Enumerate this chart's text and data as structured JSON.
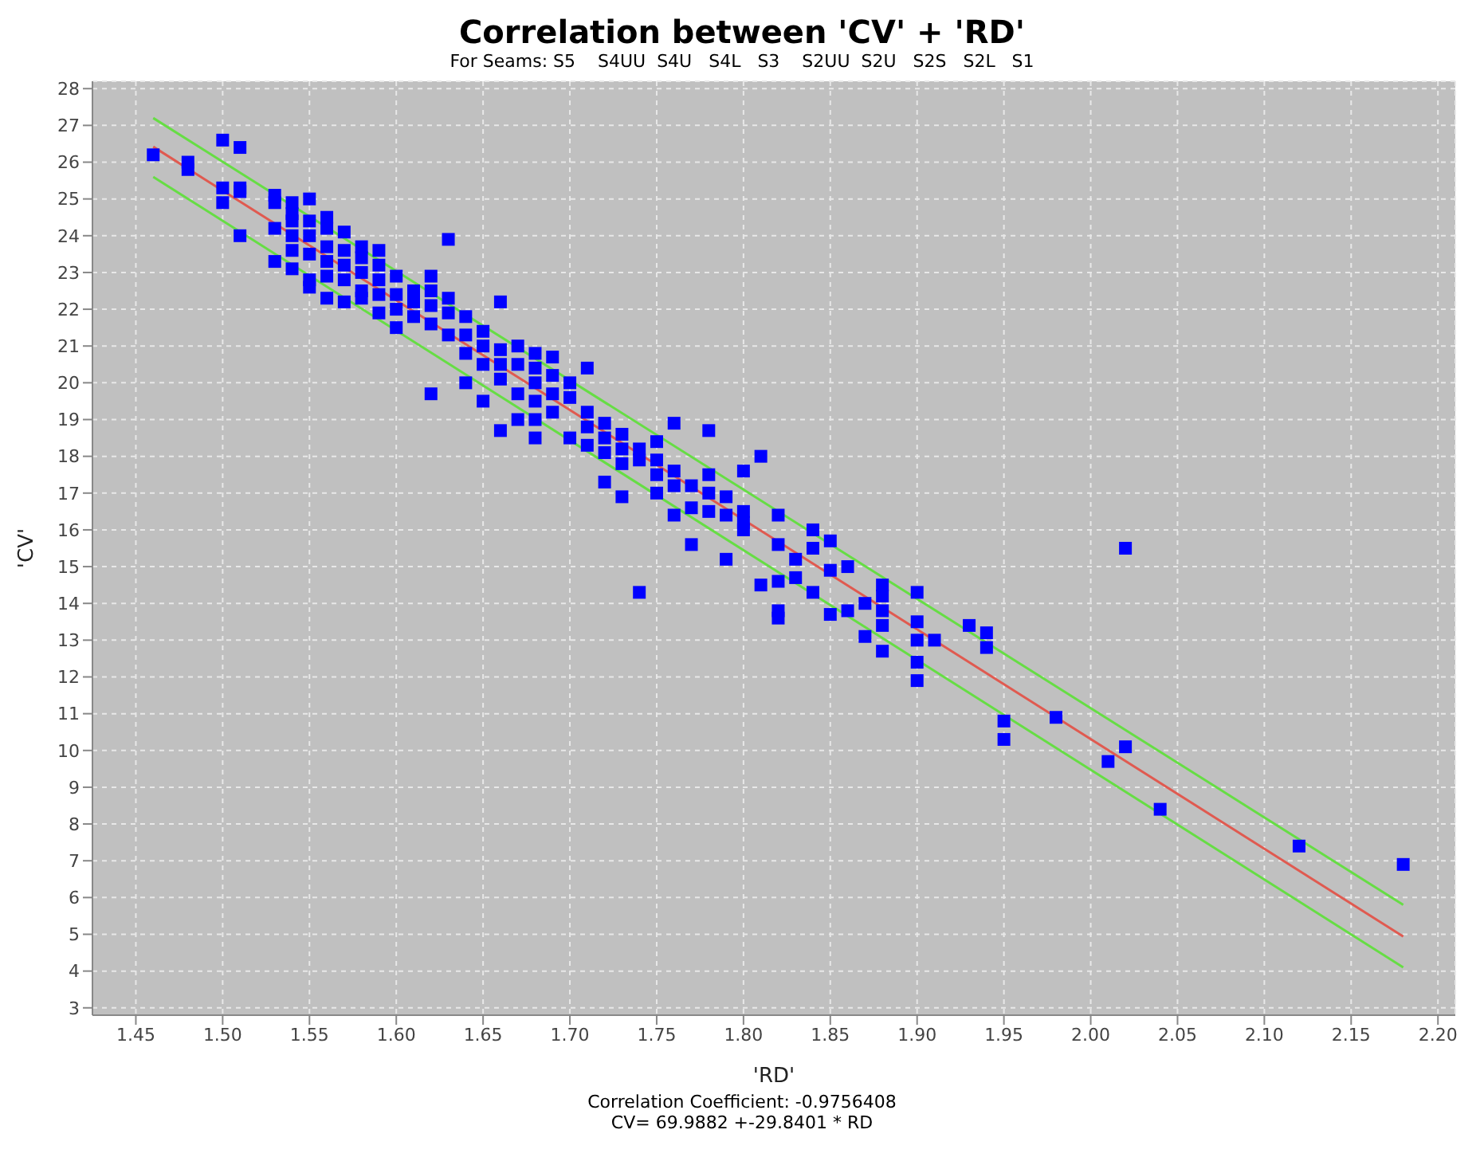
{
  "chart_data": {
    "type": "scatter",
    "title": "Correlation between 'CV' + 'RD'",
    "subtitle": "For Seams: S5    S4UU  S4U   S4L   S3    S2UU  S2U   S2S   S2L   S1",
    "xlabel": "'RD'",
    "ylabel": "'CV'",
    "annotations": [
      "Correlation Coefficient: -0.9756408",
      "CV= 69.9882 +-29.8401 * RD"
    ],
    "xlim": [
      1.425,
      2.21
    ],
    "ylim": [
      2.8,
      28.2
    ],
    "xticks": [
      {
        "value": 1.45,
        "label": "1.45"
      },
      {
        "value": 1.5,
        "label": "1.50"
      },
      {
        "value": 1.55,
        "label": "1.55"
      },
      {
        "value": 1.6,
        "label": "1.60"
      },
      {
        "value": 1.65,
        "label": "1.65"
      },
      {
        "value": 1.7,
        "label": "1.70"
      },
      {
        "value": 1.75,
        "label": "1.75"
      },
      {
        "value": 1.8,
        "label": "1.80"
      },
      {
        "value": 1.85,
        "label": "1.85"
      },
      {
        "value": 1.9,
        "label": "1.90"
      },
      {
        "value": 1.95,
        "label": "1.95"
      },
      {
        "value": 2.0,
        "label": "2.00"
      },
      {
        "value": 2.05,
        "label": "2.05"
      },
      {
        "value": 2.1,
        "label": "2.10"
      },
      {
        "value": 2.15,
        "label": "2.15"
      },
      {
        "value": 2.2,
        "label": "2.20"
      }
    ],
    "yticks": [
      3,
      4,
      5,
      6,
      7,
      8,
      9,
      10,
      11,
      12,
      13,
      14,
      15,
      16,
      17,
      18,
      19,
      20,
      21,
      22,
      23,
      24,
      25,
      26,
      27,
      28
    ],
    "grid": true,
    "legend": false,
    "marker": "square",
    "series": [
      {
        "color": "#0000ff",
        "x": [
          1.46,
          1.48,
          1.48,
          1.5,
          1.5,
          1.5,
          1.51,
          1.51,
          1.51,
          1.51,
          1.53,
          1.53,
          1.53,
          1.53,
          1.54,
          1.54,
          1.54,
          1.54,
          1.54,
          1.54,
          1.55,
          1.55,
          1.55,
          1.55,
          1.55,
          1.55,
          1.56,
          1.56,
          1.56,
          1.56,
          1.56,
          1.56,
          1.57,
          1.57,
          1.57,
          1.57,
          1.57,
          1.58,
          1.58,
          1.58,
          1.58,
          1.58,
          1.59,
          1.59,
          1.59,
          1.59,
          1.59,
          1.6,
          1.6,
          1.6,
          1.6,
          1.61,
          1.61,
          1.61,
          1.62,
          1.62,
          1.62,
          1.62,
          1.62,
          1.63,
          1.63,
          1.63,
          1.63,
          1.64,
          1.64,
          1.64,
          1.64,
          1.65,
          1.65,
          1.65,
          1.65,
          1.66,
          1.66,
          1.66,
          1.66,
          1.66,
          1.67,
          1.67,
          1.67,
          1.67,
          1.68,
          1.68,
          1.68,
          1.68,
          1.68,
          1.68,
          1.69,
          1.69,
          1.69,
          1.69,
          1.7,
          1.7,
          1.7,
          1.71,
          1.71,
          1.71,
          1.71,
          1.72,
          1.72,
          1.72,
          1.72,
          1.73,
          1.73,
          1.73,
          1.73,
          1.74,
          1.74,
          1.74,
          1.75,
          1.75,
          1.75,
          1.75,
          1.76,
          1.76,
          1.76,
          1.76,
          1.77,
          1.77,
          1.77,
          1.78,
          1.78,
          1.78,
          1.78,
          1.79,
          1.79,
          1.79,
          1.8,
          1.8,
          1.8,
          1.8,
          1.81,
          1.81,
          1.82,
          1.82,
          1.82,
          1.82,
          1.82,
          1.83,
          1.83,
          1.84,
          1.84,
          1.84,
          1.85,
          1.85,
          1.85,
          1.86,
          1.86,
          1.87,
          1.87,
          1.88,
          1.88,
          1.88,
          1.88,
          1.88,
          1.9,
          1.9,
          1.9,
          1.9,
          1.9,
          1.91,
          1.93,
          1.94,
          1.94,
          1.95,
          1.95,
          1.98,
          2.01,
          2.02,
          2.02,
          2.04,
          2.12,
          2.18
        ],
        "values": [
          26.2,
          26.0,
          25.8,
          26.6,
          25.3,
          24.9,
          26.4,
          25.3,
          25.2,
          24.0,
          25.1,
          24.9,
          24.2,
          23.3,
          24.9,
          24.6,
          24.4,
          24.0,
          23.6,
          23.1,
          25.0,
          24.4,
          24.0,
          23.5,
          22.8,
          22.6,
          24.5,
          24.2,
          23.7,
          23.3,
          22.9,
          22.3,
          24.1,
          23.6,
          23.2,
          22.8,
          22.2,
          23.7,
          23.4,
          23.0,
          22.5,
          22.3,
          23.6,
          23.2,
          22.8,
          22.4,
          21.9,
          22.9,
          22.4,
          22.0,
          21.5,
          22.5,
          22.2,
          21.8,
          22.9,
          22.5,
          22.1,
          21.6,
          19.7,
          23.9,
          22.3,
          21.9,
          21.3,
          21.8,
          21.3,
          20.8,
          20.0,
          21.4,
          21.0,
          20.5,
          19.5,
          22.2,
          20.9,
          20.5,
          20.1,
          18.7,
          21.0,
          20.5,
          19.7,
          19.0,
          20.8,
          20.4,
          20.0,
          19.5,
          19.0,
          18.5,
          20.7,
          20.2,
          19.7,
          19.2,
          20.0,
          19.6,
          18.5,
          20.4,
          19.2,
          18.8,
          18.3,
          18.9,
          18.5,
          18.1,
          17.3,
          18.6,
          18.2,
          17.8,
          16.9,
          18.2,
          17.9,
          14.3,
          18.4,
          17.9,
          17.5,
          17.0,
          18.9,
          17.6,
          17.2,
          16.4,
          17.2,
          16.6,
          15.6,
          18.7,
          17.5,
          17.0,
          16.5,
          16.9,
          16.4,
          15.2,
          17.6,
          16.5,
          16.2,
          16.0,
          18.0,
          14.5,
          16.4,
          15.6,
          14.6,
          13.8,
          13.6,
          15.2,
          14.7,
          16.0,
          15.5,
          14.3,
          15.7,
          14.9,
          13.7,
          15.0,
          13.8,
          14.0,
          13.1,
          14.5,
          14.2,
          13.8,
          13.4,
          12.7,
          14.3,
          13.5,
          13.0,
          12.4,
          11.9,
          13.0,
          13.4,
          13.2,
          12.8,
          10.8,
          10.3,
          10.9,
          9.7,
          15.5,
          10.1,
          8.4,
          7.4,
          6.9
        ]
      },
      {
        "type": "line",
        "color": "#e05a50",
        "marker": "none",
        "x": [
          1.46,
          2.18
        ],
        "values": [
          26.42,
          4.94
        ]
      },
      {
        "type": "line",
        "color": "#66dd44",
        "marker": "none",
        "x": [
          1.46,
          2.18
        ],
        "values": [
          27.2,
          5.8
        ]
      },
      {
        "type": "line",
        "color": "#66dd44",
        "marker": "none",
        "x": [
          1.46,
          2.18
        ],
        "values": [
          25.6,
          4.1
        ]
      }
    ]
  }
}
